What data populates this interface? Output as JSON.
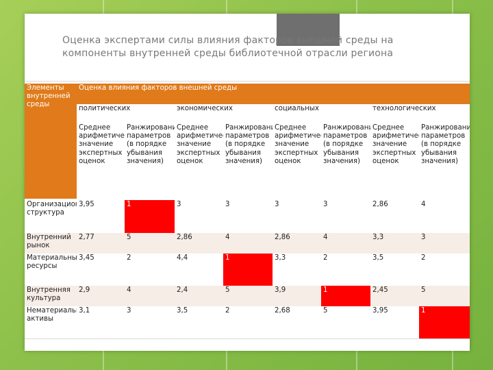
{
  "title": "Оценка экспертами силы влияния факторов внешней среды на компоненты внутренней среды библиотечной отрасли региона",
  "table": {
    "corner": "Элементы внутренней среды",
    "group_header": "Оценка влияния факторов внешней среды",
    "factors": [
      "политических",
      "экономических",
      "социальных",
      "технологических"
    ],
    "sub_headers": [
      "Среднее арифметическое значение экспертных оценок",
      "Ранжирование параметров (в порядке убывания значения)"
    ],
    "rows": [
      {
        "label": "Организационная структура",
        "values": [
          "3,95",
          "1",
          "3",
          "3",
          "3",
          "3",
          "2,86",
          "4"
        ]
      },
      {
        "label": "Внутренний рынок",
        "values": [
          "2,77",
          "5",
          "2,86",
          "4",
          "2,86",
          "4",
          "3,3",
          "3"
        ]
      },
      {
        "label": "Материальные ресурсы",
        "values": [
          "3,45",
          "2",
          "4,4",
          "1",
          "3,3",
          "2",
          "3,5",
          "2"
        ]
      },
      {
        "label": "Внутренняя культура",
        "values": [
          "2,9",
          "4",
          "2,4",
          "5",
          "3,9",
          "1",
          "2,45",
          "5"
        ]
      },
      {
        "label": "Нематериальные активы",
        "values": [
          "3,1",
          "3",
          "3,5",
          "2",
          "2,68",
          "5",
          "3,95",
          "1"
        ]
      }
    ]
  },
  "colors": {
    "background": "#8cc04a",
    "header": "#e07a1a",
    "highlight": "#ff0000"
  }
}
